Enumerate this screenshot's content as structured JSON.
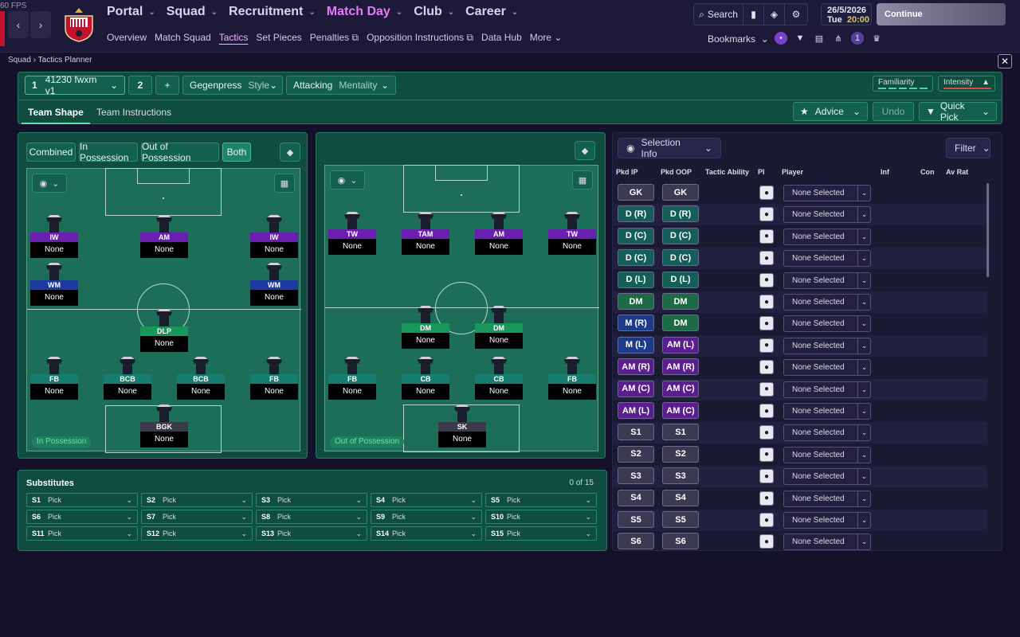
{
  "fps": "60 FPS",
  "nav": {
    "main": [
      {
        "label": "Portal",
        "active": false
      },
      {
        "label": "Squad",
        "active": false
      },
      {
        "label": "Recruitment",
        "active": false
      },
      {
        "label": "Match Day",
        "active": true
      },
      {
        "label": "Club",
        "active": false
      },
      {
        "label": "Career",
        "active": false
      }
    ],
    "sub": [
      {
        "label": "Overview",
        "active": false
      },
      {
        "label": "Match Squad",
        "active": false
      },
      {
        "label": "Tactics",
        "active": true
      },
      {
        "label": "Set Pieces",
        "active": false
      },
      {
        "label": "Penalties ⧉",
        "active": false
      },
      {
        "label": "Opposition Instructions ⧉",
        "active": false
      },
      {
        "label": "Data Hub",
        "active": false
      },
      {
        "label": "More ⌄",
        "active": false
      }
    ],
    "search_label": "Search",
    "date": "26/5/2026",
    "day": "Tue",
    "time": "20:00",
    "continue_label": "Continue",
    "bookmarks_label": "Bookmarks"
  },
  "breadcrumb": {
    "root": "Squad",
    "page": "Tactics Planner"
  },
  "tacticbar": {
    "slot1_num": "1",
    "tactic_name": "41230 fwxm v1",
    "slot2_num": "2",
    "add": "+",
    "style_value": "Gegenpress",
    "style_label": "Style",
    "mentality_value": "Attacking",
    "mentality_label": "Mentality",
    "familiarity": "Familiarity",
    "intensity": "Intensity",
    "tab_shape": "Team Shape",
    "tab_instructions": "Team Instructions",
    "advice": "Advice",
    "undo": "Undo",
    "quick_pick": "Quick Pick"
  },
  "view_toggle": [
    "Combined",
    "In Possession",
    "Out of Possession",
    "Both"
  ],
  "view_toggle_active": "Both",
  "ip_pitch": {
    "label": "In Possession",
    "players": [
      {
        "role": "IW",
        "name": "None",
        "color": "#6a1fb0"
      },
      {
        "role": "AM",
        "name": "None",
        "color": "#6a1fb0"
      },
      {
        "role": "IW",
        "name": "None",
        "color": "#6a1fb0"
      },
      {
        "role": "WM",
        "name": "None",
        "color": "#1e3aa0"
      },
      {
        "role": "WM",
        "name": "None",
        "color": "#1e3aa0"
      },
      {
        "role": "DLP",
        "name": "None",
        "color": "#17985a"
      },
      {
        "role": "FB",
        "name": "None",
        "color": "#157d6e"
      },
      {
        "role": "BCB",
        "name": "None",
        "color": "#157d6e"
      },
      {
        "role": "BCB",
        "name": "None",
        "color": "#157d6e"
      },
      {
        "role": "FB",
        "name": "None",
        "color": "#157d6e"
      },
      {
        "role": "BGK",
        "name": "None",
        "color": "#3a3a4a"
      }
    ]
  },
  "oop_pitch": {
    "label": "Out of Possession",
    "players": [
      {
        "role": "TW",
        "name": "None",
        "color": "#6a1fb0"
      },
      {
        "role": "TAM",
        "name": "None",
        "color": "#6a1fb0"
      },
      {
        "role": "AM",
        "name": "None",
        "color": "#6a1fb0"
      },
      {
        "role": "TW",
        "name": "None",
        "color": "#6a1fb0"
      },
      {
        "role": "DM",
        "name": "None",
        "color": "#17985a"
      },
      {
        "role": "DM",
        "name": "None",
        "color": "#17985a"
      },
      {
        "role": "FB",
        "name": "None",
        "color": "#157d6e"
      },
      {
        "role": "CB",
        "name": "None",
        "color": "#157d6e"
      },
      {
        "role": "CB",
        "name": "None",
        "color": "#157d6e"
      },
      {
        "role": "FB",
        "name": "None",
        "color": "#157d6e"
      },
      {
        "role": "SK",
        "name": "None",
        "color": "#3a3a4a"
      }
    ]
  },
  "substitutes": {
    "title": "Substitutes",
    "count": "0 of 15",
    "slots": [
      {
        "id": "S1",
        "v": "Pick"
      },
      {
        "id": "S2",
        "v": "Pick"
      },
      {
        "id": "S3",
        "v": "Pick"
      },
      {
        "id": "S4",
        "v": "Pick"
      },
      {
        "id": "S5",
        "v": "Pick"
      },
      {
        "id": "S6",
        "v": "Pick"
      },
      {
        "id": "S7",
        "v": "Pick"
      },
      {
        "id": "S8",
        "v": "Pick"
      },
      {
        "id": "S9",
        "v": "Pick"
      },
      {
        "id": "S10",
        "v": "Pick"
      },
      {
        "id": "S11",
        "v": "Pick"
      },
      {
        "id": "S12",
        "v": "Pick"
      },
      {
        "id": "S13",
        "v": "Pick"
      },
      {
        "id": "S14",
        "v": "Pick"
      },
      {
        "id": "S15",
        "v": "Pick"
      }
    ]
  },
  "selection": {
    "header": "Selection Info",
    "filter": "Filter",
    "columns": [
      "Pkd IP",
      "Pkd OOP",
      "Tactic Ability",
      "PI",
      "Player",
      "Inf",
      "Con",
      "Av Rat"
    ],
    "rows": [
      {
        "ip": "GK",
        "oop": "GK",
        "ipc": "#3b3a52",
        "oopc": "#3b3a52",
        "player": "None Selected"
      },
      {
        "ip": "D (R)",
        "oop": "D (R)",
        "ipc": "#155e5a",
        "oopc": "#155e5a",
        "player": "None Selected"
      },
      {
        "ip": "D (C)",
        "oop": "D (C)",
        "ipc": "#155e5a",
        "oopc": "#155e5a",
        "player": "None Selected"
      },
      {
        "ip": "D (C)",
        "oop": "D (C)",
        "ipc": "#155e5a",
        "oopc": "#155e5a",
        "player": "None Selected"
      },
      {
        "ip": "D (L)",
        "oop": "D (L)",
        "ipc": "#155e5a",
        "oopc": "#155e5a",
        "player": "None Selected"
      },
      {
        "ip": "DM",
        "oop": "DM",
        "ipc": "#1d6b45",
        "oopc": "#1d6b45",
        "player": "None Selected"
      },
      {
        "ip": "M (R)",
        "oop": "DM",
        "ipc": "#1e3a8a",
        "oopc": "#1d6b45",
        "player": "None Selected"
      },
      {
        "ip": "M (L)",
        "oop": "AM (L)",
        "ipc": "#1e3a8a",
        "oopc": "#5b1e8f",
        "player": "None Selected"
      },
      {
        "ip": "AM (R)",
        "oop": "AM (R)",
        "ipc": "#5b1e8f",
        "oopc": "#5b1e8f",
        "player": "None Selected"
      },
      {
        "ip": "AM (C)",
        "oop": "AM (C)",
        "ipc": "#5b1e8f",
        "oopc": "#5b1e8f",
        "player": "None Selected"
      },
      {
        "ip": "AM (L)",
        "oop": "AM (C)",
        "ipc": "#5b1e8f",
        "oopc": "#5b1e8f",
        "player": "None Selected"
      },
      {
        "ip": "S1",
        "oop": "S1",
        "ipc": "#3b3a52",
        "oopc": "#3b3a52",
        "player": "None Selected"
      },
      {
        "ip": "S2",
        "oop": "S2",
        "ipc": "#3b3a52",
        "oopc": "#3b3a52",
        "player": "None Selected"
      },
      {
        "ip": "S3",
        "oop": "S3",
        "ipc": "#3b3a52",
        "oopc": "#3b3a52",
        "player": "None Selected"
      },
      {
        "ip": "S4",
        "oop": "S4",
        "ipc": "#3b3a52",
        "oopc": "#3b3a52",
        "player": "None Selected"
      },
      {
        "ip": "S5",
        "oop": "S5",
        "ipc": "#3b3a52",
        "oopc": "#3b3a52",
        "player": "None Selected"
      },
      {
        "ip": "S6",
        "oop": "S6",
        "ipc": "#3b3a52",
        "oopc": "#3b3a52",
        "player": "None Selected"
      }
    ]
  },
  "icons": {
    "back": "chevron-left-icon",
    "forward": "chevron-right-icon",
    "search": "search-icon",
    "settings": "gear-icon",
    "close": "close-icon",
    "eye": "eye-icon",
    "star": "star-icon",
    "shirt": "shirt-icon",
    "person": "person-icon"
  }
}
